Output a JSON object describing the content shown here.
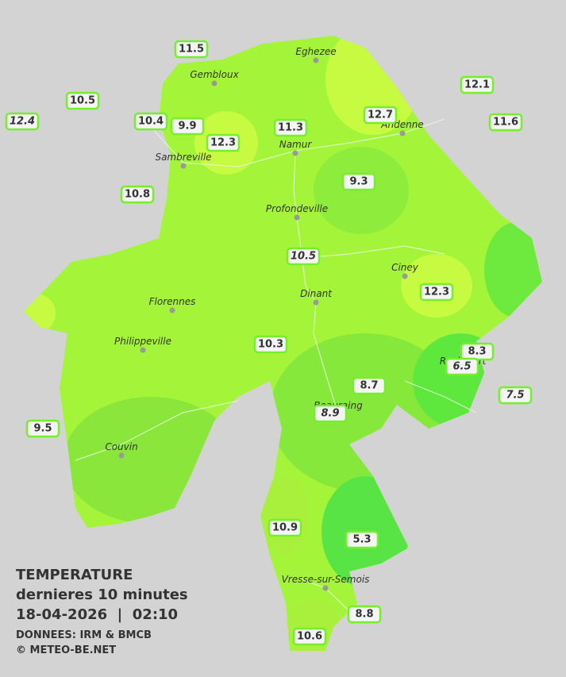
{
  "title": {
    "heading": "TEMPERATURE",
    "subtitle": "dernieres 10 minutes",
    "datetime": "18-04-2026  |  02:10",
    "source": "DONNEES: IRM & BMCB",
    "copyright": "© METEO-BE.NET"
  },
  "cities": [
    "Eghezee",
    "Gembloux",
    "Andenne",
    "Namur",
    "Sambreville",
    "Profondeville",
    "Ciney",
    "Dinant",
    "Florennes",
    "Philippeville",
    "Rochefort",
    "Beauraing",
    "Couvin",
    "Vresse-sur-Semois"
  ],
  "stations": [
    {
      "value": 11.5
    },
    {
      "value": 10.5
    },
    {
      "value": 12.4,
      "italic": true
    },
    {
      "value": 10.4
    },
    {
      "value": 9.9
    },
    {
      "value": 12.3
    },
    {
      "value": 11.3
    },
    {
      "value": 12.7
    },
    {
      "value": 12.1
    },
    {
      "value": 11.6
    },
    {
      "value": 10.8
    },
    {
      "value": 9.3
    },
    {
      "value": 10.5,
      "italic": true
    },
    {
      "value": 12.3
    },
    {
      "value": 10.3
    },
    {
      "value": 8.3
    },
    {
      "value": 6.5,
      "italic": true
    },
    {
      "value": 7.5,
      "italic": true
    },
    {
      "value": 8.7
    },
    {
      "value": 8.9,
      "italic": true
    },
    {
      "value": 9.5
    },
    {
      "value": 10.9
    },
    {
      "value": 5.3
    },
    {
      "value": 8.8
    },
    {
      "value": 10.6
    }
  ]
}
